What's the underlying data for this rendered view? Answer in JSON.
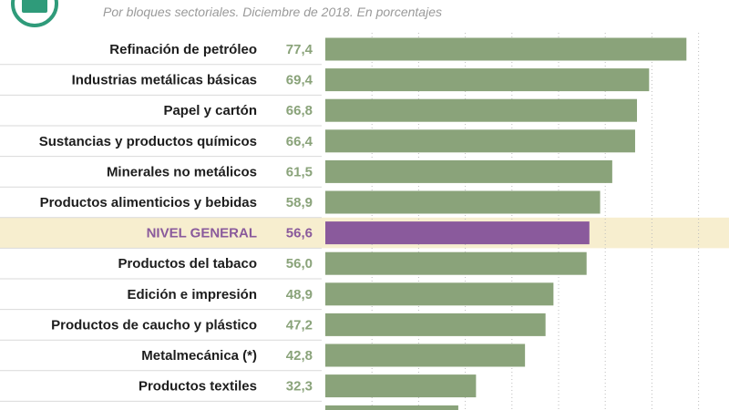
{
  "subtitle": "Por bloques sectoriales. Diciembre de 2018. En porcentajes",
  "colors": {
    "bar": "#8aa37a",
    "highlight_bar": "#8a5a9c",
    "highlight_band": "#f7eecf",
    "separator": "#d9d9d9",
    "gridline": "#bdbdbd",
    "logo": "#2f9b7a"
  },
  "chart_data": {
    "type": "bar",
    "orientation": "horizontal",
    "title": "",
    "subtitle": "Por bloques sectoriales. Diciembre de 2018. En porcentajes",
    "xlabel": "",
    "ylabel": "",
    "xlim": [
      0,
      80
    ],
    "grid": true,
    "highlight": "NIVEL GENERAL",
    "categories": [
      "Refinación de petróleo",
      "Industrias metálicas básicas",
      "Papel y cartón",
      "Sustancias y productos químicos",
      "Minerales no metálicos",
      "Productos alimenticios y bebidas",
      "NIVEL GENERAL",
      "Productos del tabaco",
      "Edición e impresión",
      "Productos de caucho y plástico",
      "Metalmecánica (*)",
      "Productos textiles"
    ],
    "values": [
      77.4,
      69.4,
      66.8,
      66.4,
      61.5,
      58.9,
      56.6,
      56.0,
      48.9,
      47.2,
      42.8,
      32.3
    ],
    "value_labels": [
      "77,4",
      "69,4",
      "66,8",
      "66,4",
      "61,5",
      "58,9",
      "56,6",
      "56,0",
      "48,9",
      "47,2",
      "42,8",
      "32,3"
    ]
  }
}
